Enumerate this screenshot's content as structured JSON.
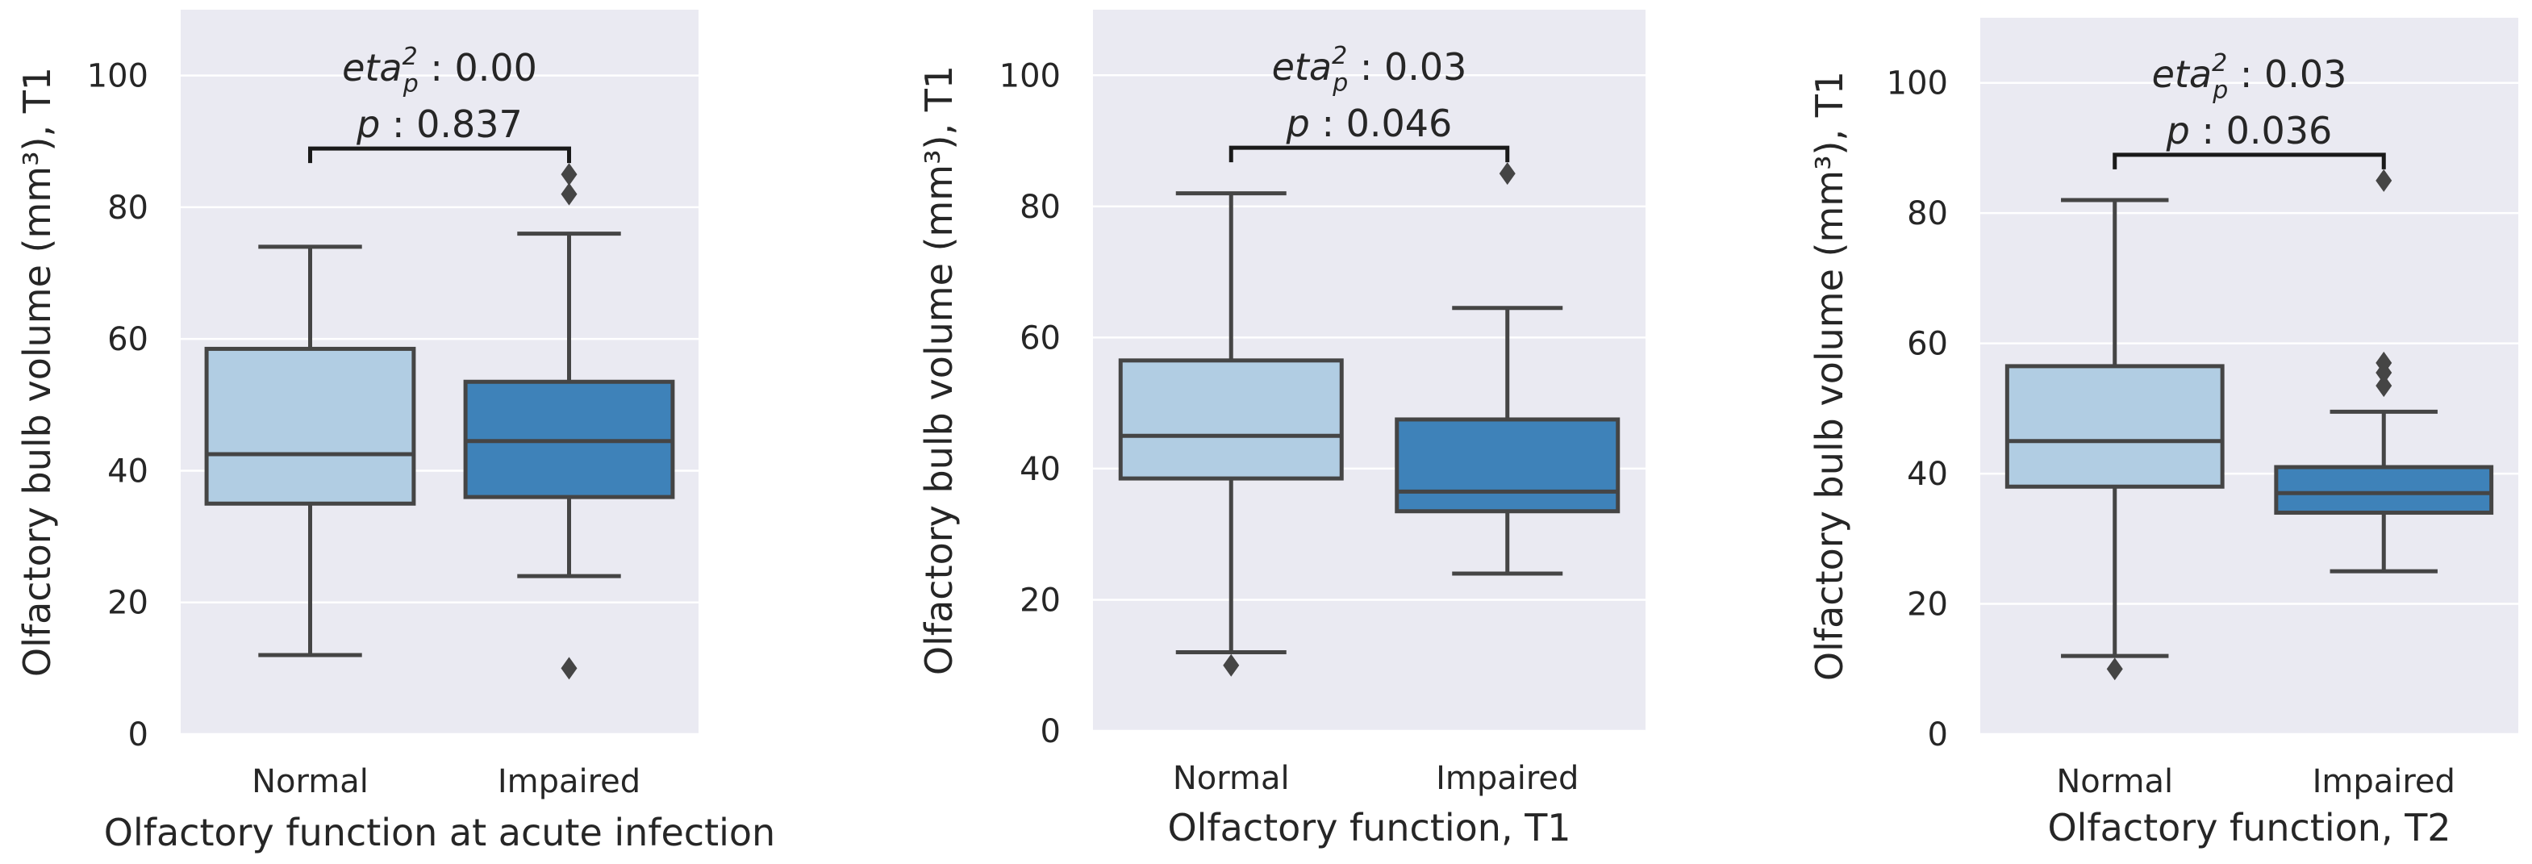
{
  "colors": {
    "panel_bg": "#eaeaf2",
    "grid": "#ffffff",
    "normal_fill": "#b1cde3",
    "impaired_fill": "#3e82b9",
    "line": "#454545",
    "text": "#262626"
  },
  "chart_data": [
    {
      "type": "box",
      "xlabel": "Olfactory function at acute infection",
      "ylabel": "Olfactory bulb volume (mm³), T1",
      "categories": [
        "Normal",
        "Impaired"
      ],
      "ylim": [
        0,
        110
      ],
      "yticks": [
        0,
        20,
        40,
        60,
        80,
        100
      ],
      "grid": true,
      "boxes": [
        {
          "name": "Normal",
          "whislo": 12,
          "q1": 35,
          "median": 42.5,
          "q3": 58.5,
          "whishi": 74,
          "fliers": []
        },
        {
          "name": "Impaired",
          "whislo": 24,
          "q1": 36,
          "median": 44.5,
          "q3": 53.5,
          "whishi": 76,
          "fliers": [
            85,
            82,
            10
          ]
        }
      ],
      "annotation": {
        "effect_label": "eta",
        "effect_sub": "p",
        "effect_sup": "2",
        "effect_value": " : 0.00",
        "p_label": "p",
        "p_value": " : 0.837"
      }
    },
    {
      "type": "box",
      "xlabel": "Olfactory function, T1",
      "ylabel": "Olfactory bulb volume (mm³), T1",
      "categories": [
        "Normal",
        "Impaired"
      ],
      "ylim": [
        0,
        110
      ],
      "yticks": [
        0,
        20,
        40,
        60,
        80,
        100
      ],
      "grid": true,
      "boxes": [
        {
          "name": "Normal",
          "whislo": 12,
          "q1": 38.5,
          "median": 45,
          "q3": 56.5,
          "whishi": 82,
          "fliers": [
            10
          ]
        },
        {
          "name": "Impaired",
          "whislo": 24,
          "q1": 33.5,
          "median": 36.5,
          "q3": 47.5,
          "whishi": 64.5,
          "fliers": [
            85
          ]
        }
      ],
      "annotation": {
        "effect_label": "eta",
        "effect_sub": "p",
        "effect_sup": "2",
        "effect_value": " : 0.03",
        "p_label": "p",
        "p_value": " : 0.046"
      }
    },
    {
      "type": "box",
      "xlabel": "Olfactory function, T2",
      "ylabel": "Olfactory bulb volume (mm³), T1",
      "categories": [
        "Normal",
        "Impaired"
      ],
      "ylim": [
        0,
        110
      ],
      "yticks": [
        0,
        20,
        40,
        60,
        80,
        100
      ],
      "grid": true,
      "boxes": [
        {
          "name": "Normal",
          "whislo": 12,
          "q1": 38,
          "median": 45,
          "q3": 56.5,
          "whishi": 82,
          "fliers": [
            10
          ]
        },
        {
          "name": "Impaired",
          "whislo": 25,
          "q1": 34,
          "median": 37,
          "q3": 41,
          "whishi": 49.5,
          "fliers": [
            85,
            57,
            55.5,
            53.5
          ]
        }
      ],
      "annotation": {
        "effect_label": "eta",
        "effect_sub": "p",
        "effect_sup": "2",
        "effect_value": " : 0.03",
        "p_label": "p",
        "p_value": " : 0.036"
      }
    }
  ]
}
